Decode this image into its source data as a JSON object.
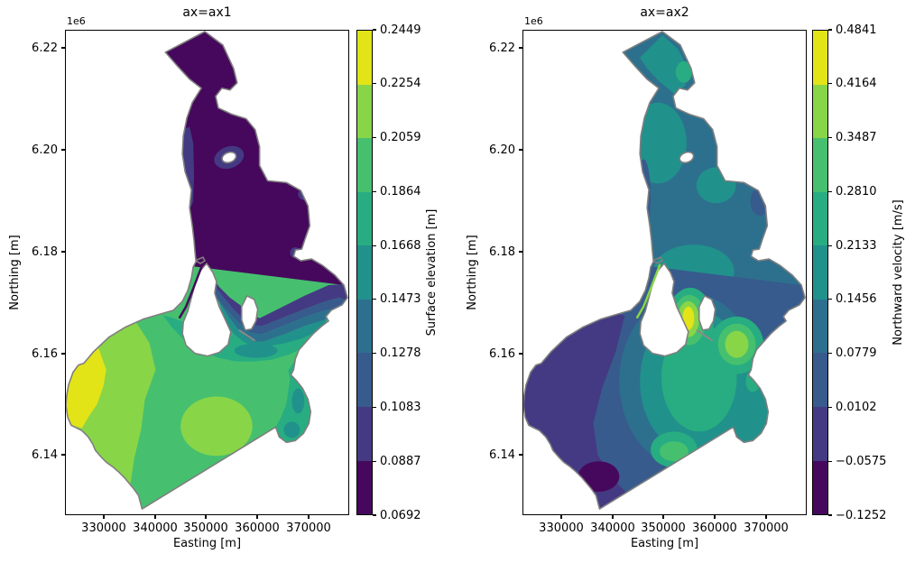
{
  "figure": {
    "background": "#ffffff",
    "text_color": "#000000",
    "coastline_color": "#7f7f7f"
  },
  "colormap": {
    "name": "viridis",
    "n_levels": 9,
    "colors": [
      "#46085c",
      "#443a83",
      "#375b8d",
      "#2d708e",
      "#21918c",
      "#27ad81",
      "#46c06f",
      "#89d548",
      "#e2e418"
    ]
  },
  "subplots": [
    {
      "title": "ax=ax1",
      "offset_text": "1e6",
      "xlabel": "Easting [m]",
      "ylabel": "Northing [m]",
      "x_tick_labels": [
        "330000",
        "340000",
        "350000",
        "360000",
        "370000"
      ],
      "y_tick_labels": [
        "6.22",
        "6.20",
        "6.18",
        "6.16",
        "6.14"
      ],
      "colorbar": {
        "label": "Surface elevation [m]",
        "tick_labels": [
          "0.2449",
          "0.2254",
          "0.2059",
          "0.1864",
          "0.1668",
          "0.1473",
          "0.1278",
          "0.1083",
          "0.0887",
          "0.0692"
        ]
      }
    },
    {
      "title": "ax=ax2",
      "offset_text": "1e6",
      "xlabel": "Easting [m]",
      "ylabel": "Northing [m]",
      "x_tick_labels": [
        "330000",
        "340000",
        "350000",
        "360000",
        "370000"
      ],
      "y_tick_labels": [
        "6.22",
        "6.20",
        "6.18",
        "6.16",
        "6.14"
      ],
      "colorbar": {
        "label": "Northward velocity [m/s]",
        "tick_labels": [
          "0.4841",
          "0.4164",
          "0.3487",
          "0.2810",
          "0.2133",
          "0.1456",
          "0.0779",
          "0.0102",
          "−0.0575",
          "−0.1252"
        ]
      }
    }
  ],
  "chart_data": [
    {
      "type": "filled_contour_map",
      "title": "ax=ax1",
      "xlabel": "Easting [m]",
      "ylabel": "Northing [m]",
      "x_ticks": [
        330000,
        340000,
        350000,
        360000,
        370000
      ],
      "y_ticks": [
        6140000,
        6160000,
        6180000,
        6200000,
        6220000
      ],
      "xlim": [
        322500,
        378000
      ],
      "ylim": [
        6128500,
        6223700
      ],
      "colormap": "viridis",
      "colorbar_label": "Surface elevation [m]",
      "contour_levels": [
        0.0692,
        0.0887,
        0.1083,
        0.1278,
        0.1473,
        0.1668,
        0.1864,
        0.2059,
        0.2254,
        0.2449
      ],
      "value_range": [
        0.0692,
        0.2449
      ],
      "grid": false,
      "legend": "colorbar-right",
      "pattern": "Low surface elevation (~0.07-0.09 m, dark purple) over the entire northern basin; tight banded transition (0.10-0.17 m) in the narrow strait around the mid islands; southern bay mostly 0.19-0.21 m (green) rising to 0.21-0.24 m (light green to yellow) along the western shore; teal pockets (~0.15-0.18 m) along the eastern lobes."
    },
    {
      "type": "filled_contour_map",
      "title": "ax=ax2",
      "xlabel": "Easting [m]",
      "ylabel": "Northing [m]",
      "x_ticks": [
        330000,
        340000,
        350000,
        360000,
        370000
      ],
      "y_ticks": [
        6140000,
        6160000,
        6180000,
        6200000,
        6220000
      ],
      "xlim": [
        322500,
        378000
      ],
      "ylim": [
        6128500,
        6223700
      ],
      "colormap": "viridis",
      "colorbar_label": "Northward velocity [m/s]",
      "contour_levels": [
        -0.1252,
        -0.0575,
        0.0102,
        0.0779,
        0.1456,
        0.2133,
        0.281,
        0.3487,
        0.4164,
        0.4841
      ],
      "value_range": [
        -0.1252,
        0.4841
      ],
      "grid": false,
      "legend": "colorbar-right",
      "pattern": "Northern basin moderate northward flow (~0.08-0.21 m/s, blue-teal); strong localized maxima in the mid-strait channels near the islands (~0.35-0.48 m/s, bright green-yellow spots) plus a secondary green maximum to their east; south-western bay weak to negative flow (0.01 to -0.06 m/s, purple-blue) with a dark minimum (~-0.13 m/s) at the southern shore; greenish patch (~0.22-0.28 m/s) at bottom-center."
    }
  ]
}
